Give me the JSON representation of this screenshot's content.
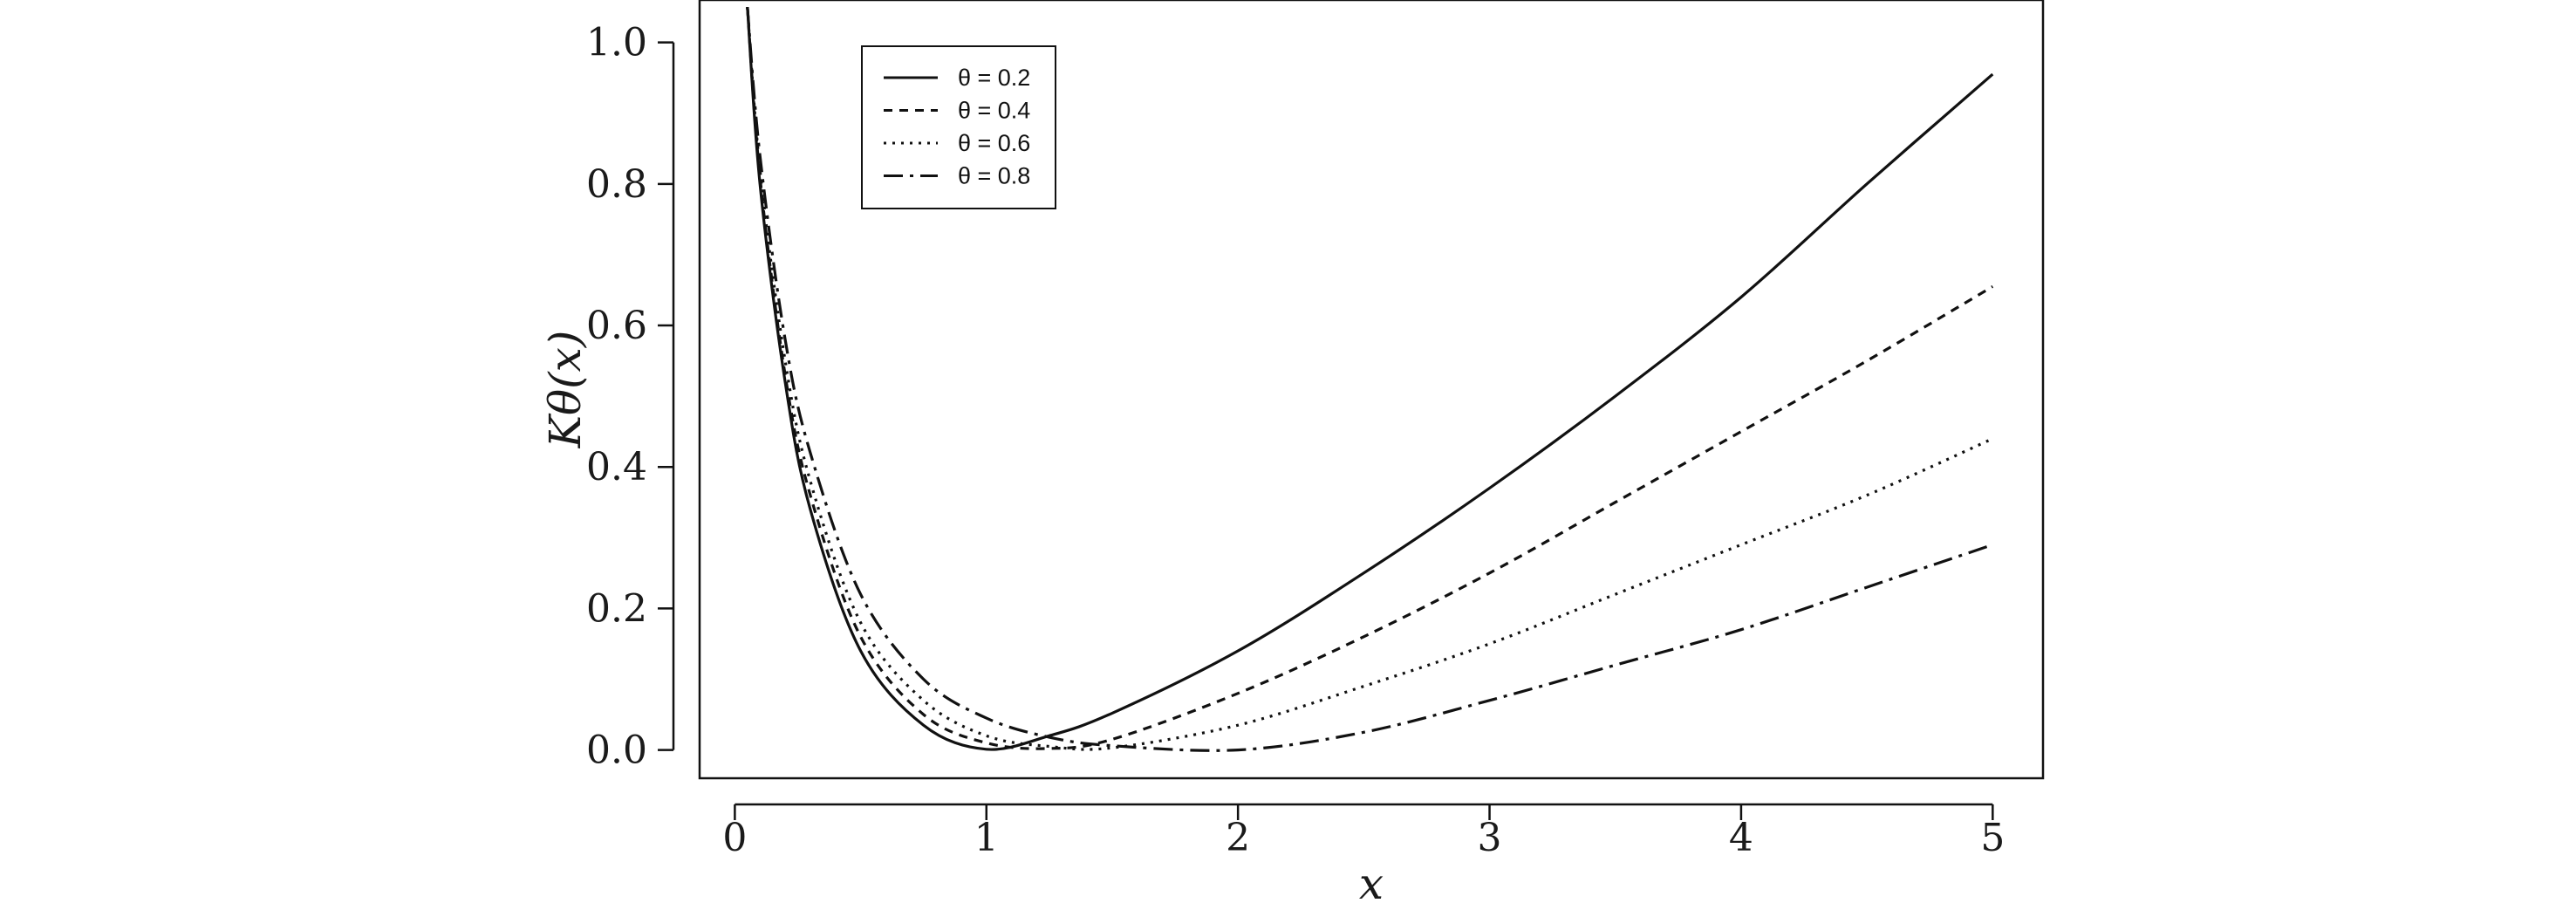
{
  "chart_data": {
    "type": "line",
    "title": "",
    "xlabel": "x",
    "ylabel": "Kθ(x)",
    "xlim": [
      -0.14,
      5.2
    ],
    "ylim": [
      -0.04,
      1.06
    ],
    "xticks": [
      0,
      1,
      2,
      3,
      4,
      5
    ],
    "yticks": [
      0.0,
      0.2,
      0.4,
      0.6,
      0.8,
      1.0
    ],
    "xtick_labels": [
      "0",
      "1",
      "2",
      "3",
      "4",
      "5"
    ],
    "ytick_labels": [
      "0.0",
      "0.2",
      "0.4",
      "0.6",
      "0.8",
      "1.0"
    ],
    "grid": false,
    "legend": "top-left",
    "x": [
      0.05,
      0.1,
      0.2,
      0.3,
      0.5,
      0.75,
      1.0,
      1.25,
      1.5,
      2.0,
      2.5,
      3.0,
      3.5,
      4.0,
      4.5,
      5.0
    ],
    "series": [
      {
        "name": "θ = 0.2",
        "theta": 0.2,
        "dash": "none",
        "values": [
          1.05,
          0.8,
          0.52,
          0.34,
          0.14,
          0.035,
          0.001,
          0.02,
          0.052,
          0.14,
          0.25,
          0.37,
          0.5,
          0.64,
          0.8,
          0.955
        ]
      },
      {
        "name": "θ = 0.4",
        "theta": 0.4,
        "dash": "10 8",
        "values": [
          1.05,
          0.81,
          0.53,
          0.36,
          0.16,
          0.05,
          0.01,
          0.002,
          0.015,
          0.08,
          0.16,
          0.25,
          0.35,
          0.45,
          0.55,
          0.655
        ]
      },
      {
        "name": "θ = 0.6",
        "theta": 0.6,
        "dash": "3 7",
        "values": [
          1.05,
          0.82,
          0.55,
          0.38,
          0.18,
          0.07,
          0.02,
          0.005,
          0.003,
          0.035,
          0.09,
          0.15,
          0.22,
          0.29,
          0.36,
          0.44
        ]
      },
      {
        "name": "θ = 0.8",
        "theta": 0.8,
        "dash": "22 8 4 8",
        "values": [
          1.05,
          0.84,
          0.58,
          0.42,
          0.22,
          0.1,
          0.045,
          0.018,
          0.006,
          0.0,
          0.025,
          0.07,
          0.12,
          0.17,
          0.23,
          0.29
        ]
      }
    ]
  }
}
